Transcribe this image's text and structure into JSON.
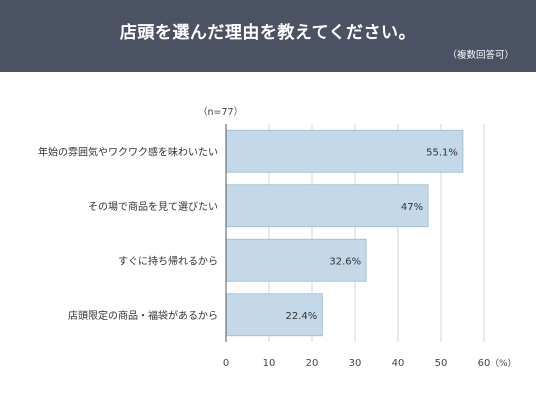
{
  "header": {
    "title": "店頭を選んだ理由を教えてください。",
    "note": "（複数回答可）"
  },
  "sample_size_label": "（n=77）",
  "colors": {
    "header_bg": "#4b5263",
    "bar_fill": "#c3d9ea",
    "bar_stroke": "#9cbad0",
    "grid": "#d6d6d6"
  },
  "chart_data": {
    "type": "bar",
    "orientation": "horizontal",
    "categories": [
      "年始の雰囲気やワクワク感を味わいたい",
      "その場で商品を見て選びたい",
      "すぐに持ち帰れるから",
      "店頭限定の商品・福袋があるから"
    ],
    "values": [
      55.1,
      47,
      32.6,
      22.4
    ],
    "value_labels": [
      "55.1%",
      "47%",
      "32.6%",
      "22.4%"
    ],
    "xticks": [
      0,
      10,
      20,
      30,
      40,
      50,
      60
    ],
    "xunit": "（%）",
    "xlim": [
      0,
      60
    ],
    "grid": true
  }
}
